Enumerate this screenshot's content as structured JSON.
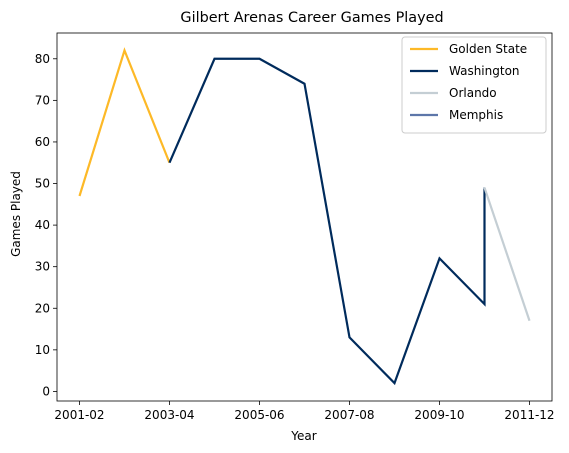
{
  "chart_data": {
    "type": "line",
    "title": "Gilbert Arenas Career Games Played",
    "xlabel": "Year",
    "ylabel": "Games Played",
    "x_ticks": [
      "2001-02",
      "2003-04",
      "2005-06",
      "2007-08",
      "2009-10",
      "2011-12"
    ],
    "seasons": [
      "2001-02",
      "2002-03",
      "2003-04",
      "2004-05",
      "2005-06",
      "2006-07",
      "2007-08",
      "2008-09",
      "2009-10",
      "2010-11",
      "2011-12"
    ],
    "y_ticks": [
      0,
      10,
      20,
      30,
      40,
      50,
      60,
      70,
      80
    ],
    "ylim": [
      -2.3,
      86.2
    ],
    "xlim": [
      -0.5,
      10.5
    ],
    "grid": false,
    "legend_position": "top-right",
    "series": [
      {
        "name": "Golden State",
        "color": "#FDB927",
        "points": [
          [
            "2001-02",
            47
          ],
          [
            "2002-03",
            82
          ],
          [
            "2003-04",
            55
          ]
        ]
      },
      {
        "name": "Washington",
        "color": "#002B5C",
        "points": [
          [
            "2003-04",
            55
          ],
          [
            "2004-05",
            80
          ],
          [
            "2005-06",
            80
          ],
          [
            "2006-07",
            74
          ],
          [
            "2007-08",
            13
          ],
          [
            "2008-09",
            2
          ],
          [
            "2009-10",
            32
          ],
          [
            "2010-11",
            21
          ],
          [
            "2010-11",
            49
          ]
        ]
      },
      {
        "name": "Orlando",
        "color": "#C4CED4",
        "points": [
          [
            "2010-11",
            49
          ],
          [
            "2011-12",
            17
          ]
        ]
      },
      {
        "name": "Memphis",
        "color": "#5D76A9",
        "points": []
      }
    ]
  }
}
